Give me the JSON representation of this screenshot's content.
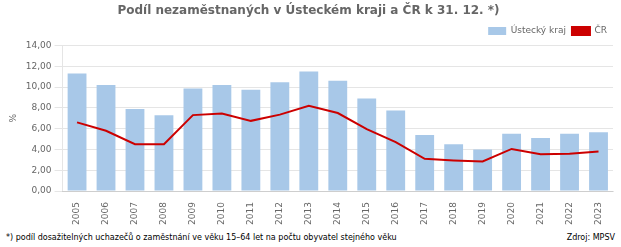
{
  "chart_data": {
    "type": "bar",
    "title": "Podíl nezaměstnaných v Ústeckém kraji a ČR k 31. 12. *)",
    "categories": [
      2005,
      2006,
      2007,
      2008,
      2009,
      2010,
      2011,
      2012,
      2013,
      2014,
      2015,
      2016,
      2017,
      2018,
      2019,
      2020,
      2021,
      2022,
      2023
    ],
    "series": [
      {
        "name": "Ústecký kraj",
        "type": "bar",
        "color": "#a8c8e8",
        "values": [
          11.3,
          10.2,
          7.9,
          7.3,
          9.85,
          10.2,
          9.75,
          10.45,
          11.5,
          10.6,
          8.9,
          7.75,
          5.4,
          4.5,
          4.0,
          5.5,
          5.1,
          5.5,
          5.65
        ]
      },
      {
        "name": "ČR",
        "type": "line",
        "color": "#cc0000",
        "values": [
          6.6,
          5.8,
          4.5,
          4.5,
          7.3,
          7.45,
          6.75,
          7.35,
          8.2,
          7.5,
          5.95,
          4.7,
          3.1,
          2.95,
          2.85,
          4.05,
          3.55,
          3.6,
          3.8
        ]
      }
    ],
    "y_label": "%",
    "ylim": [
      0,
      14
    ],
    "yticks": [
      {
        "value": 0,
        "label": "0,00"
      },
      {
        "value": 2,
        "label": "2,00"
      },
      {
        "value": 4,
        "label": "4,00"
      },
      {
        "value": 6,
        "label": "6,00"
      },
      {
        "value": 8,
        "label": "8,00"
      },
      {
        "value": 10,
        "label": "10,00"
      },
      {
        "value": 12,
        "label": "12,00"
      },
      {
        "value": 14,
        "label": "14,00"
      }
    ],
    "grid": "y",
    "legend": "upper right",
    "annotations": [
      "*) podíl dosažitelných uchazečů o zaměstnání ve věku 15–64 let na počtu obyvatel stejného věku",
      "Zdroj: MPSV"
    ]
  }
}
